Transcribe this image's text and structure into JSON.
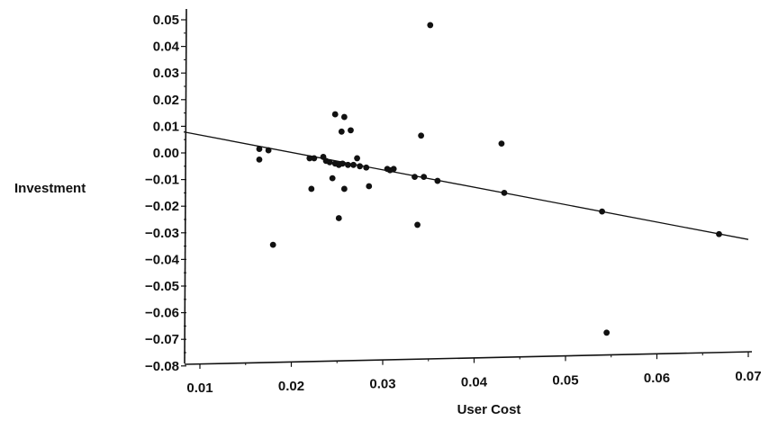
{
  "chart_data": {
    "type": "scatter",
    "title": "",
    "xlabel": "User Cost",
    "ylabel": "Investment",
    "xlim": [
      0.01,
      0.07
    ],
    "ylim": [
      -0.08,
      0.05
    ],
    "grid": false,
    "x_ticks": [
      "0.01",
      "0.02",
      "0.03",
      "0.04",
      "0.05",
      "0.06",
      "0.07"
    ],
    "y_ticks": [
      "0.05",
      "0.04",
      "0.03",
      "0.02",
      "0.01",
      "0.00",
      "-0.01",
      "-0.02",
      "-0.03",
      "-0.04",
      "-0.05",
      "-0.06",
      "-0.07",
      "-0.08"
    ],
    "points": [
      {
        "x": 0.0165,
        "y": 0.0015
      },
      {
        "x": 0.0165,
        "y": -0.0025
      },
      {
        "x": 0.0175,
        "y": 0.001
      },
      {
        "x": 0.018,
        "y": -0.0345
      },
      {
        "x": 0.022,
        "y": -0.002
      },
      {
        "x": 0.0225,
        "y": -0.002
      },
      {
        "x": 0.0222,
        "y": -0.0135
      },
      {
        "x": 0.0235,
        "y": -0.0015
      },
      {
        "x": 0.0238,
        "y": -0.003
      },
      {
        "x": 0.0242,
        "y": -0.0035
      },
      {
        "x": 0.0245,
        "y": -0.0095
      },
      {
        "x": 0.0248,
        "y": -0.004
      },
      {
        "x": 0.0248,
        "y": 0.0145
      },
      {
        "x": 0.0252,
        "y": -0.0045
      },
      {
        "x": 0.0252,
        "y": -0.0245
      },
      {
        "x": 0.0255,
        "y": 0.008
      },
      {
        "x": 0.0256,
        "y": -0.004
      },
      {
        "x": 0.0258,
        "y": -0.0135
      },
      {
        "x": 0.0258,
        "y": 0.0135
      },
      {
        "x": 0.0262,
        "y": -0.0045
      },
      {
        "x": 0.0265,
        "y": 0.0085
      },
      {
        "x": 0.0268,
        "y": -0.0045
      },
      {
        "x": 0.0272,
        "y": -0.002
      },
      {
        "x": 0.0275,
        "y": -0.005
      },
      {
        "x": 0.0282,
        "y": -0.0055
      },
      {
        "x": 0.0285,
        "y": -0.0125
      },
      {
        "x": 0.0305,
        "y": -0.006
      },
      {
        "x": 0.0308,
        "y": -0.0065
      },
      {
        "x": 0.0312,
        "y": -0.006
      },
      {
        "x": 0.0335,
        "y": -0.009
      },
      {
        "x": 0.0338,
        "y": -0.027
      },
      {
        "x": 0.0342,
        "y": 0.0065
      },
      {
        "x": 0.0345,
        "y": -0.009
      },
      {
        "x": 0.0352,
        "y": 0.048
      },
      {
        "x": 0.036,
        "y": -0.0105
      },
      {
        "x": 0.043,
        "y": 0.0035
      },
      {
        "x": 0.0433,
        "y": -0.015
      },
      {
        "x": 0.054,
        "y": -0.022
      },
      {
        "x": 0.0545,
        "y": -0.0675
      },
      {
        "x": 0.0668,
        "y": -0.0305
      }
    ],
    "fit_line": {
      "x": [
        0.01,
        0.07
      ],
      "y": [
        0.0066,
        -0.0325
      ]
    }
  }
}
